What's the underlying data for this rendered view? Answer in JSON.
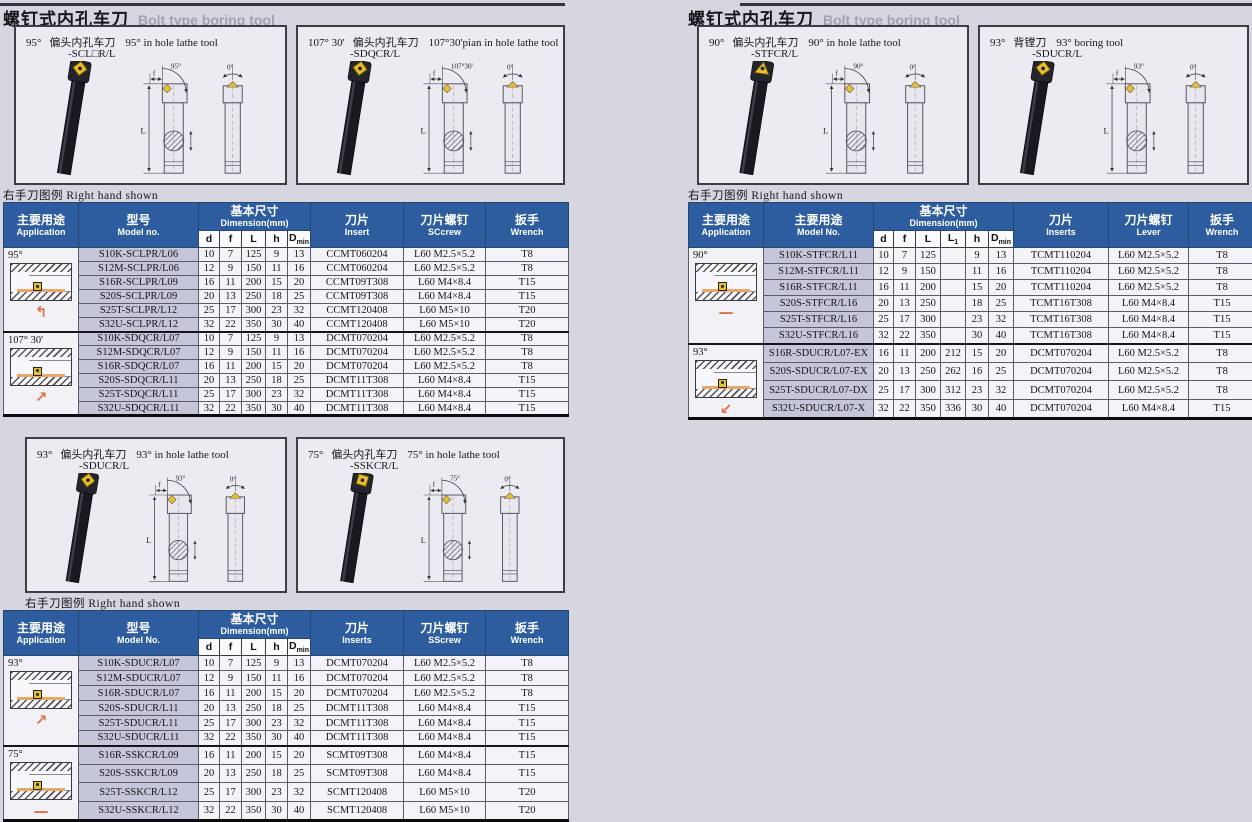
{
  "titles": {
    "left": {
      "zh": "螺钉式内孔车刀",
      "en": "Bolt type boring tool"
    },
    "right": {
      "zh": "螺钉式内孔车刀",
      "en": "Bolt type boring tool"
    }
  },
  "caption_right_hand": "右手刀图例 Right hand shown",
  "diagram_labels": {
    "f": "f",
    "L": "L",
    "tilt": "0°"
  },
  "colors": {
    "page_bg": "#d7d5e0",
    "header_blue": "#2d5d9e",
    "model_cell": "#c5c6da",
    "insert_yellow": "#e9c02c",
    "accent_arrow": "#e2704c"
  },
  "boxes": [
    {
      "angle": "95°",
      "name_zh": "偏头内孔车刀",
      "name_en": "95° in hole lathe tool",
      "model": "-SCL□R/L",
      "arc": "95°",
      "insert_shape": "diamond"
    },
    {
      "angle": "107° 30'",
      "name_zh": "偏头内孔车刀",
      "name_en": "107°30'pian in hole lathe tool",
      "model": "-SDQCR/L",
      "arc": "107°30'",
      "insert_shape": "diamond"
    },
    {
      "angle": "93°",
      "name_zh": "偏头内孔车刀",
      "name_en": "93° in hole lathe tool",
      "model": "-SDUCR/L",
      "arc": "93°",
      "insert_shape": "diamond"
    },
    {
      "angle": "75°",
      "name_zh": "偏头内孔车刀",
      "name_en": "75° in hole lathe tool",
      "model": "-SSKCR/L",
      "arc": "75°",
      "insert_shape": "square"
    },
    {
      "angle": "90°",
      "name_zh": "偏头内孔车刀",
      "name_en": "90° in hole lathe tool",
      "model": "-STFCR/L",
      "arc": "90°",
      "insert_shape": "triangle"
    },
    {
      "angle": "93°",
      "name_zh": "背镗刀",
      "name_en": "93° boring tool",
      "model": "-SDUCR/L",
      "arc": "93°",
      "insert_shape": "diamond"
    }
  ],
  "tables": [
    {
      "header": {
        "app_zh": "主要用途",
        "app_en": "Application",
        "model_zh": "型号",
        "model_en": "Model no.",
        "dim_zh": "基本尺寸",
        "dim_en": "Dimension(mm)",
        "dim_sub": [
          "d",
          "f",
          "L",
          "h",
          "Dmin"
        ],
        "insert_zh": "刀片",
        "insert_en": "Insert",
        "screw_zh": "刀片螺钉",
        "screw_en": "SCcrew",
        "wrench_zh": "扳手",
        "wrench_en": "Wrench"
      },
      "groups": [
        {
          "angle": "95°",
          "arrow": "↰",
          "rows": [
            [
              "S10K-SCLPR/L06",
              "10",
              "7",
              "125",
              "9",
              "13",
              "CCMT060204",
              "L60 M2.5×5.2",
              "T8"
            ],
            [
              "S12M-SCLPR/L06",
              "12",
              "9",
              "150",
              "11",
              "16",
              "CCMT060204",
              "L60 M2.5×5.2",
              "T8"
            ],
            [
              "S16R-SCLPR/L09",
              "16",
              "11",
              "200",
              "15",
              "20",
              "CCMT09T308",
              "L60 M4×8.4",
              "T15"
            ],
            [
              "S20S-SCLPR/L09",
              "20",
              "13",
              "250",
              "18",
              "25",
              "CCMT09T308",
              "L60 M4×8.4",
              "T15"
            ],
            [
              "S25T-SCLPR/L12",
              "25",
              "17",
              "300",
              "23",
              "32",
              "CCMT120408",
              "L60 M5×10",
              "T20"
            ],
            [
              "S32U-SCLPR/L12",
              "32",
              "22",
              "350",
              "30",
              "40",
              "CCMT120408",
              "L60 M5×10",
              "T20"
            ]
          ]
        },
        {
          "angle": "107° 30'",
          "arrow": "↗",
          "rows": [
            [
              "S10K-SDQCR/L07",
              "10",
              "7",
              "125",
              "9",
              "13",
              "DCMT070204",
              "L60 M2.5×5.2",
              "T8"
            ],
            [
              "S12M-SDQCR/L07",
              "12",
              "9",
              "150",
              "11",
              "16",
              "DCMT070204",
              "L60 M2.5×5.2",
              "T8"
            ],
            [
              "S16R-SDQCR/L07",
              "16",
              "11",
              "200",
              "15",
              "20",
              "DCMT070204",
              "L60 M2.5×5.2",
              "T8"
            ],
            [
              "S20S-SDQCR/L11",
              "20",
              "13",
              "250",
              "18",
              "25",
              "DCMT11T308",
              "L60 M4×8.4",
              "T15"
            ],
            [
              "S25T-SDQCR/L11",
              "25",
              "17",
              "300",
              "23",
              "32",
              "DCMT11T308",
              "L60 M4×8.4",
              "T15"
            ],
            [
              "S32U-SDQCR/L11",
              "32",
              "22",
              "350",
              "30",
              "40",
              "DCMT11T308",
              "L60 M4×8.4",
              "T15"
            ]
          ]
        }
      ]
    },
    {
      "header": {
        "app_zh": "主要用途",
        "app_en": "Application",
        "model_zh": "型号",
        "model_en": "Model No.",
        "dim_zh": "基本尺寸",
        "dim_en": "Dimension(mm)",
        "dim_sub": [
          "d",
          "f",
          "L",
          "h",
          "Dmin"
        ],
        "insert_zh": "刀片",
        "insert_en": "Inserts",
        "screw_zh": "刀片螺钉",
        "screw_en": "SScrew",
        "wrench_zh": "扳手",
        "wrench_en": "Wrench"
      },
      "groups": [
        {
          "angle": "93°",
          "arrow": "↗",
          "rows": [
            [
              "S10K-SDUCR/L07",
              "10",
              "7",
              "125",
              "9",
              "13",
              "DCMT070204",
              "L60 M2.5×5.2",
              "T8"
            ],
            [
              "S12M-SDUCR/L07",
              "12",
              "9",
              "150",
              "11",
              "16",
              "DCMT070204",
              "L60 M2.5×5.2",
              "T8"
            ],
            [
              "S16R-SDUCR/L07",
              "16",
              "11",
              "200",
              "15",
              "20",
              "DCMT070204",
              "L60 M2.5×5.2",
              "T8"
            ],
            [
              "S20S-SDUCR/L11",
              "20",
              "13",
              "250",
              "18",
              "25",
              "DCMT11T308",
              "L60 M4×8.4",
              "T15"
            ],
            [
              "S25T-SDUCR/L11",
              "25",
              "17",
              "300",
              "23",
              "32",
              "DCMT11T308",
              "L60 M4×8.4",
              "T15"
            ],
            [
              "S32U-SDUCR/L11",
              "32",
              "22",
              "350",
              "30",
              "40",
              "DCMT11T308",
              "L60 M4×8.4",
              "T15"
            ]
          ]
        },
        {
          "angle": "75°",
          "arrow": "—",
          "rows": [
            [
              "S16R-SSKCR/L09",
              "16",
              "11",
              "200",
              "15",
              "20",
              "SCMT09T308",
              "L60 M4×8.4",
              "T15"
            ],
            [
              "S20S-SSKCR/L09",
              "20",
              "13",
              "250",
              "18",
              "25",
              "SCMT09T308",
              "L60 M4×8.4",
              "T15"
            ],
            [
              "S25T-SSKCR/L12",
              "25",
              "17",
              "300",
              "23",
              "32",
              "SCMT120408",
              "L60 M5×10",
              "T20"
            ],
            [
              "S32U-SSKCR/L12",
              "32",
              "22",
              "350",
              "30",
              "40",
              "SCMT120408",
              "L60 M5×10",
              "T20"
            ]
          ]
        }
      ]
    },
    {
      "header": {
        "app_zh": "主要用途",
        "app_en": "Application",
        "model_zh": "主要用途",
        "model_en": "Model No.",
        "dim_zh": "基本尺寸",
        "dim_en": "Dimension(mm)",
        "dim_sub": [
          "d",
          "f",
          "L",
          "L1",
          "h",
          "Dmin"
        ],
        "insert_zh": "刀片",
        "insert_en": "Inserts",
        "screw_zh": "刀片螺钉",
        "screw_en": "Lever",
        "wrench_zh": "扳手",
        "wrench_en": "Wrench"
      },
      "groups": [
        {
          "angle": "90°",
          "arrow": "—",
          "rows": [
            [
              "S10K-STFCR/L11",
              "10",
              "7",
              "125",
              "",
              "9",
              "13",
              "TCMT110204",
              "L60 M2.5×5.2",
              "T8"
            ],
            [
              "S12M-STFCR/L11",
              "12",
              "9",
              "150",
              "",
              "11",
              "16",
              "TCMT110204",
              "L60 M2.5×5.2",
              "T8"
            ],
            [
              "S16R-STFCR/L11",
              "16",
              "11",
              "200",
              "",
              "15",
              "20",
              "TCMT110204",
              "L60 M2.5×5.2",
              "T8"
            ],
            [
              "S20S-STFCR/L16",
              "20",
              "13",
              "250",
              "",
              "18",
              "25",
              "TCMT16T308",
              "L60 M4×8.4",
              "T15"
            ],
            [
              "S25T-STFCR/L16",
              "25",
              "17",
              "300",
              "",
              "23",
              "32",
              "TCMT16T308",
              "L60 M4×8.4",
              "T15"
            ],
            [
              "S32U-STFCR/L16",
              "32",
              "22",
              "350",
              "",
              "30",
              "40",
              "TCMT16T308",
              "L60 M4×8.4",
              "T15"
            ]
          ]
        },
        {
          "angle": "93°",
          "arrow": "↙",
          "rows": [
            [
              "S16R-SDUCR/L07-EX",
              "16",
              "11",
              "200",
              "212",
              "15",
              "20",
              "DCMT070204",
              "L60 M2.5×5.2",
              "T8"
            ],
            [
              "S20S-SDUCR/L07-EX",
              "20",
              "13",
              "250",
              "262",
              "16",
              "25",
              "DCMT070204",
              "L60 M2.5×5.2",
              "T8"
            ],
            [
              "S25T-SDUCR/L07-DX",
              "25",
              "17",
              "300",
              "312",
              "23",
              "32",
              "DCMT070204",
              "L60 M2.5×5.2",
              "T8"
            ],
            [
              "S32U-SDUCR/L07-X",
              "32",
              "22",
              "350",
              "336",
              "30",
              "40",
              "DCMT070204",
              "L60 M4×8.4",
              "T15"
            ]
          ]
        }
      ]
    }
  ]
}
